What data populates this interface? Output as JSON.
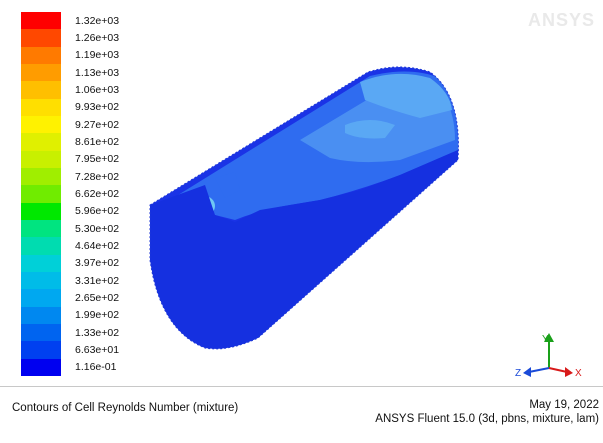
{
  "legend": {
    "labels": [
      "1.32e+03",
      "1.26e+03",
      "1.19e+03",
      "1.13e+03",
      "1.06e+03",
      "9.93e+02",
      "9.27e+02",
      "8.61e+02",
      "7.95e+02",
      "7.28e+02",
      "6.62e+02",
      "5.96e+02",
      "5.30e+02",
      "4.64e+02",
      "3.97e+02",
      "3.31e+02",
      "2.65e+02",
      "1.99e+02",
      "1.33e+02",
      "6.63e+01",
      "1.16e-01"
    ],
    "colors": [
      "#ff0000",
      "#ff4800",
      "#ff7a00",
      "#ff9c00",
      "#ffbf00",
      "#ffdf00",
      "#fff200",
      "#e0f000",
      "#c8f000",
      "#a0ee00",
      "#70ec00",
      "#00e800",
      "#00e480",
      "#00dcb0",
      "#00d0d8",
      "#00bce8",
      "#00a8f0",
      "#0088f0",
      "#0064f0",
      "#0040f0",
      "#0000f0"
    ]
  },
  "watermark": "ANSYS",
  "triad": {
    "y_label": "Y",
    "z_label": "Z",
    "x_label": "X"
  },
  "footer": {
    "title": "Contours of Cell Reynolds Number (mixture)",
    "date": "May 19, 2022",
    "software": "ANSYS Fluent 15.0 (3d, pbns, mixture, lam)"
  }
}
